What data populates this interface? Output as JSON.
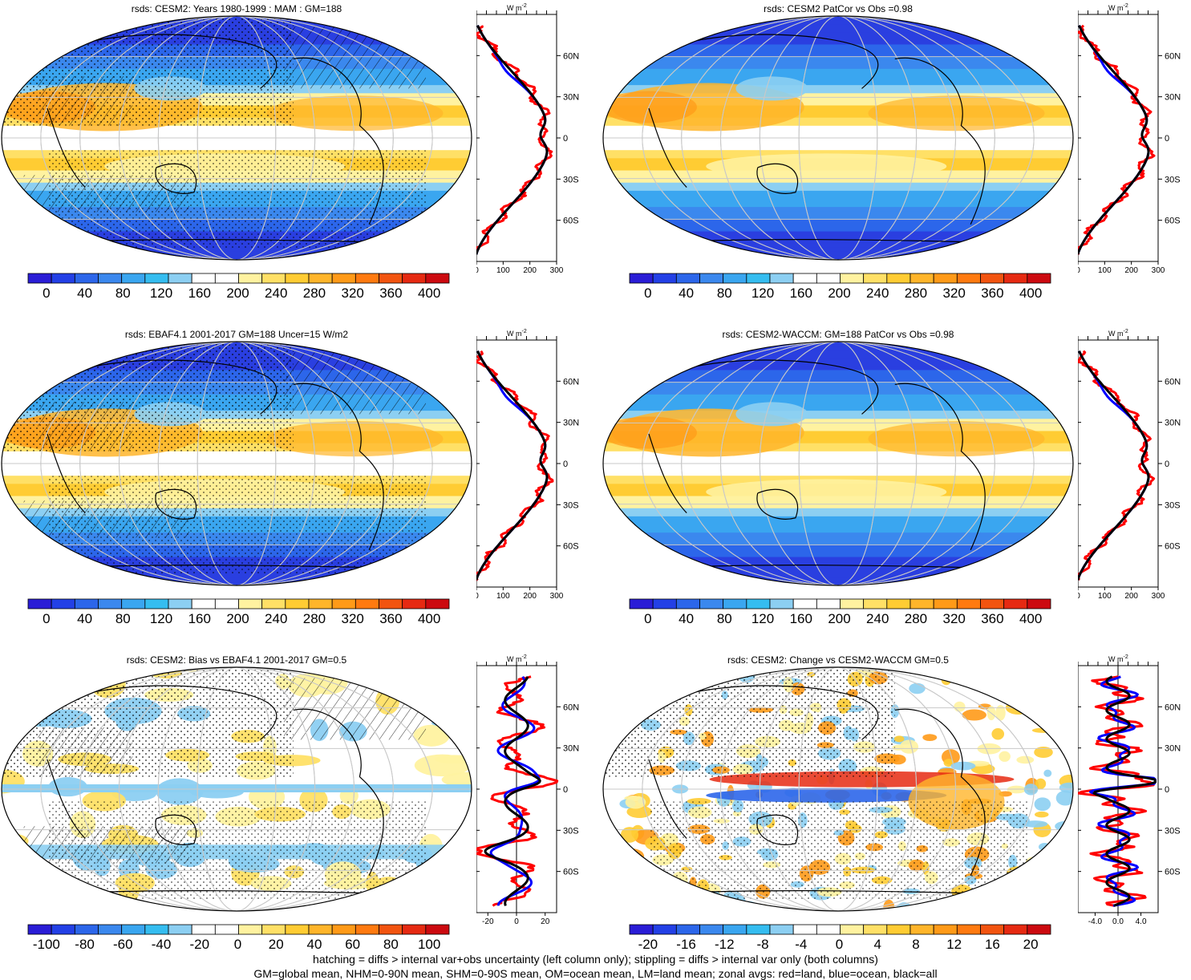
{
  "footer": {
    "line1": "hatching = diffs > internal var+obs uncertainty (left column only); stippling = diffs > internal var only (both columns)",
    "line2": "GM=global mean, NHM=0-90N mean, SHM=0-90S mean, OM=ocean mean, LM=land mean; zonal avgs: red=land, blue=ocean, black=all"
  },
  "profile_unit": "W m",
  "profile_unit_sup": "-2",
  "lat_labels": [
    "60N",
    "30N",
    "0",
    "30S",
    "60S"
  ],
  "colors": {
    "land": "#ff0000",
    "ocean": "#0000ff",
    "all": "#000000"
  },
  "chart_data": [
    {
      "type": "heatmap",
      "title": "rsds: CESM2: Years 1980-1999 : MAM : GM=188",
      "colorbar": {
        "ticks": [
          "0",
          "40",
          "80",
          "120",
          "160",
          "200",
          "240",
          "280",
          "320",
          "360",
          "400"
        ],
        "range": [
          -20,
          420
        ],
        "palette": "absolute"
      },
      "profile": {
        "type": "line",
        "xticks": [
          "0",
          "100",
          "200",
          "300"
        ],
        "xlim": [
          0,
          300
        ],
        "ylim": [
          -90,
          90
        ]
      },
      "overlay": [
        "hatching",
        "stippling"
      ]
    },
    {
      "type": "heatmap",
      "title": "rsds: CESM2 PatCor vs Obs =0.98",
      "colorbar": {
        "ticks": [
          "0",
          "40",
          "80",
          "120",
          "160",
          "200",
          "240",
          "280",
          "320",
          "360",
          "400"
        ],
        "range": [
          -20,
          420
        ],
        "palette": "absolute"
      },
      "profile": {
        "type": "line",
        "xticks": [
          "0",
          "100",
          "200",
          "300"
        ],
        "xlim": [
          0,
          300
        ],
        "ylim": [
          -90,
          90
        ]
      },
      "overlay": []
    },
    {
      "type": "heatmap",
      "title": "rsds: EBAF4.1 2001-2017 GM=188 Uncer=15 W/m2",
      "colorbar": {
        "ticks": [
          "0",
          "40",
          "80",
          "120",
          "160",
          "200",
          "240",
          "280",
          "320",
          "360",
          "400"
        ],
        "range": [
          -20,
          420
        ],
        "palette": "absolute"
      },
      "profile": {
        "type": "line",
        "xticks": [
          "0",
          "100",
          "200",
          "300"
        ],
        "xlim": [
          0,
          300
        ],
        "ylim": [
          -90,
          90
        ]
      },
      "overlay": [
        "hatching",
        "stippling"
      ]
    },
    {
      "type": "heatmap",
      "title": "rsds: CESM2-WACCM: GM=188 PatCor vs Obs =0.98",
      "colorbar": {
        "ticks": [
          "0",
          "40",
          "80",
          "120",
          "160",
          "200",
          "240",
          "280",
          "320",
          "360",
          "400"
        ],
        "range": [
          -20,
          420
        ],
        "palette": "absolute"
      },
      "profile": {
        "type": "line",
        "xticks": [
          "0",
          "100",
          "200",
          "300"
        ],
        "xlim": [
          0,
          300
        ],
        "ylim": [
          -90,
          90
        ]
      },
      "overlay": []
    },
    {
      "type": "heatmap",
      "title": "rsds: CESM2: Bias vs EBAF4.1 2001-2017 GM=0.5",
      "colorbar": {
        "ticks": [
          "-100",
          "-80",
          "-60",
          "-40",
          "-20",
          "0",
          "20",
          "40",
          "60",
          "80",
          "100"
        ],
        "range": [
          -110,
          110
        ],
        "palette": "diff"
      },
      "profile": {
        "type": "line",
        "xticks": [
          "-20",
          "0",
          "20"
        ],
        "xlim": [
          -28,
          28
        ],
        "ylim": [
          -90,
          90
        ]
      },
      "overlay": [
        "hatching",
        "stippling"
      ]
    },
    {
      "type": "heatmap",
      "title": "rsds: CESM2: Change vs CESM2-WACCM GM=0.5",
      "colorbar": {
        "ticks": [
          "-20",
          "-16",
          "-12",
          "-8",
          "-4",
          "0",
          "4",
          "8",
          "12",
          "16",
          "20"
        ],
        "range": [
          -22,
          22
        ],
        "palette": "diff"
      },
      "profile": {
        "type": "line",
        "xticks": [
          "-4.0",
          "0.0",
          "4.0"
        ],
        "xlim": [
          -7,
          7
        ],
        "ylim": [
          -90,
          90
        ]
      },
      "overlay": [
        "stippling"
      ]
    }
  ]
}
